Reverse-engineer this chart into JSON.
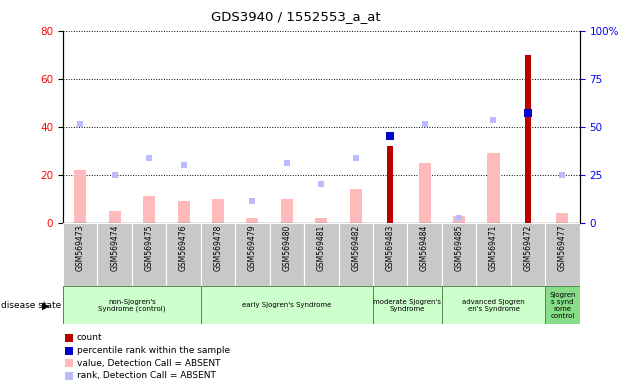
{
  "title": "GDS3940 / 1552553_a_at",
  "samples": [
    "GSM569473",
    "GSM569474",
    "GSM569475",
    "GSM569476",
    "GSM569478",
    "GSM569479",
    "GSM569480",
    "GSM569481",
    "GSM569482",
    "GSM569483",
    "GSM569484",
    "GSM569485",
    "GSM569471",
    "GSM569472",
    "GSM569477"
  ],
  "count_values": [
    0,
    0,
    0,
    0,
    0,
    0,
    0,
    0,
    0,
    32,
    0,
    0,
    0,
    70,
    0
  ],
  "percentile_rank": [
    null,
    null,
    null,
    null,
    null,
    null,
    null,
    null,
    null,
    45,
    null,
    null,
    null,
    57,
    null
  ],
  "absent_value": [
    22,
    5,
    11,
    9,
    10,
    2,
    10,
    2,
    14,
    null,
    25,
    3,
    29,
    null,
    4
  ],
  "absent_rank": [
    41,
    20,
    27,
    24,
    null,
    9,
    25,
    16,
    27,
    null,
    41,
    2,
    43,
    null,
    20
  ],
  "disease_groups": [
    {
      "label": "non-Sjogren's\nSyndrome (control)",
      "start": 0,
      "end": 3,
      "color": "#ccffcc"
    },
    {
      "label": "early Sjogren's Syndrome",
      "start": 4,
      "end": 8,
      "color": "#ccffcc"
    },
    {
      "label": "moderate Sjogren's\nSyndrome",
      "start": 9,
      "end": 10,
      "color": "#ccffcc"
    },
    {
      "label": "advanced Sjogren\nen's Syndrome",
      "start": 11,
      "end": 13,
      "color": "#ccffcc"
    },
    {
      "label": "Sjogren\ns synd\nrome\ncontrol",
      "start": 14,
      "end": 14,
      "color": "#88dd88"
    }
  ],
  "left_ylim": [
    0,
    80
  ],
  "right_ylim": [
    0,
    100
  ],
  "left_yticks": [
    0,
    20,
    40,
    60,
    80
  ],
  "right_yticks": [
    0,
    25,
    50,
    75,
    100
  ],
  "right_yticklabels": [
    "0",
    "25",
    "50",
    "75",
    "100%"
  ],
  "color_count": "#bb0000",
  "color_percentile": "#0000cc",
  "color_absent_value": "#ffbbbb",
  "color_absent_rank": "#bbbbff",
  "bar_width": 0.35,
  "scatter_size": 20
}
